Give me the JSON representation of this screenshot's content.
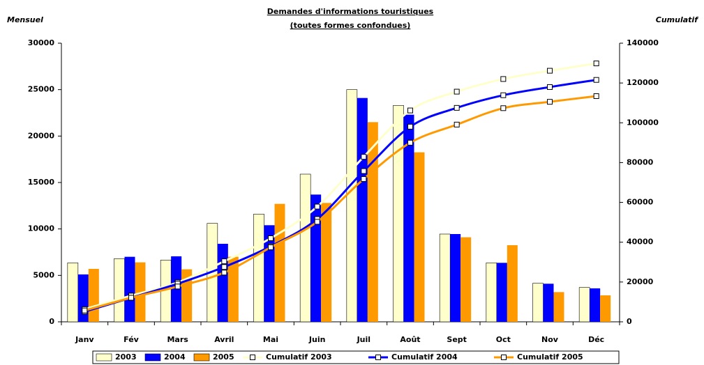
{
  "chart_data": {
    "type": "bar",
    "title": "Demandes d'informations touristiques",
    "subtitle": "(toutes formes confondues)",
    "y_label": "Mensuel",
    "y2_label": "Cumulatif",
    "categories": [
      "Janv",
      "Fév",
      "Mars",
      "Avril",
      "Mai",
      "Juin",
      "Juil",
      "Août",
      "Sept",
      "Oct",
      "Nov",
      "Déc"
    ],
    "series": [
      {
        "name": "2003",
        "type": "bar",
        "color": "#ffffcc",
        "values": [
          6350,
          6800,
          6650,
          10600,
          11600,
          15900,
          25000,
          23300,
          9450,
          6350,
          4150,
          3700
        ]
      },
      {
        "name": "2004",
        "type": "bar",
        "color": "#0000ff",
        "values": [
          5100,
          7000,
          7050,
          8400,
          10400,
          13700,
          24100,
          22300,
          9450,
          6350,
          4100,
          3600
        ]
      },
      {
        "name": "2005",
        "type": "bar",
        "color": "#ff9900",
        "values": [
          5700,
          6400,
          5650,
          7000,
          12700,
          12800,
          21500,
          18250,
          9100,
          8250,
          3200,
          2850
        ]
      },
      {
        "name": "Cumulatif 2003",
        "type": "line",
        "axis": "y2",
        "color": "#ffffcc",
        "values": [
          6350,
          13150,
          19800,
          30400,
          42000,
          57900,
          82900,
          106200,
          115650,
          122000,
          126150,
          129850
        ]
      },
      {
        "name": "Cumulatif 2004",
        "type": "line",
        "axis": "y2",
        "color": "#0000ff",
        "values": [
          5100,
          12100,
          19150,
          27550,
          37950,
          51650,
          75750,
          98050,
          107500,
          113850,
          117950,
          121550
        ]
      },
      {
        "name": "Cumulatif 2005",
        "type": "line",
        "axis": "y2",
        "color": "#ff9900",
        "values": [
          5700,
          12100,
          17750,
          24750,
          37450,
          50250,
          71750,
          90000,
          99100,
          107350,
          110550,
          113400
        ]
      }
    ],
    "ylim": [
      0,
      30000
    ],
    "yticks": [
      0,
      5000,
      10000,
      15000,
      20000,
      25000,
      30000
    ],
    "y2lim": [
      0,
      140000
    ],
    "y2ticks": [
      0,
      20000,
      40000,
      60000,
      80000,
      100000,
      120000,
      140000
    ],
    "legend": "bottom"
  }
}
